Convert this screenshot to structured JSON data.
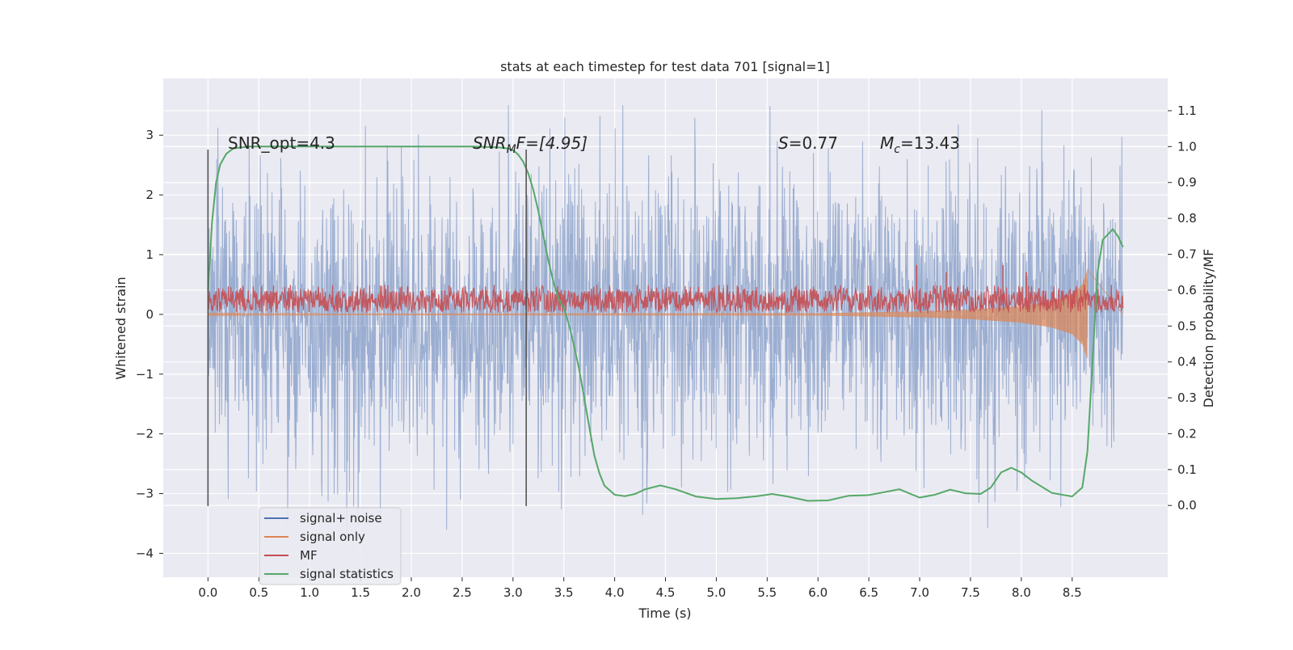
{
  "chart_data": {
    "type": "line",
    "title": "stats at each timestep for test data 701 [signal=1]",
    "xlabel": "Time (s)",
    "ylabel": "Whitened strain",
    "ylabel_right": "Detection probability/MF",
    "xlim": [
      -0.44,
      9.44
    ],
    "ylim": [
      -4.4,
      3.95
    ],
    "ylim_right": [
      -0.2,
      1.19
    ],
    "x_ticks": [
      "0.0",
      "0.5",
      "1.0",
      "1.5",
      "2.0",
      "2.5",
      "3.0",
      "3.5",
      "4.0",
      "4.5",
      "5.0",
      "5.5",
      "6.0",
      "6.5",
      "7.0",
      "7.5",
      "8.0",
      "8.5"
    ],
    "x_tick_values": [
      0.0,
      0.5,
      1.0,
      1.5,
      2.0,
      2.5,
      3.0,
      3.5,
      4.0,
      4.5,
      5.0,
      5.5,
      6.0,
      6.5,
      7.0,
      7.5,
      8.0,
      8.5
    ],
    "y_ticks": [
      "3",
      "2",
      "1",
      "0",
      "−1",
      "−2",
      "−3",
      "−4"
    ],
    "y_tick_values": [
      3,
      2,
      1,
      0,
      -1,
      -2,
      -3,
      -4
    ],
    "y_right_ticks": [
      "1.1",
      "1.0",
      "0.9",
      "0.8",
      "0.7",
      "0.6",
      "0.5",
      "0.4",
      "0.3",
      "0.2",
      "0.1",
      "0.0"
    ],
    "y_right_tick_values": [
      1.1,
      1.0,
      0.9,
      0.8,
      0.7,
      0.6,
      0.5,
      0.4,
      0.3,
      0.2,
      0.1,
      0.0
    ],
    "annotations": {
      "snr_opt": "SNR_opt=4.3",
      "snr_mf_name": "SNR",
      "snr_mf_sub": "M",
      "snr_mf_rest": "F=[4.95]",
      "s_name": "S",
      "s_value": "=0.77",
      "mc_name": "M",
      "mc_sub": "c",
      "mc_value": "=13.43"
    },
    "vertical_markers": [
      0.0,
      3.13
    ],
    "legend": {
      "position": "lower-left",
      "entries": [
        {
          "label": "signal+ noise",
          "color": "#4c72b0"
        },
        {
          "label": "signal only",
          "color": "#dd8452"
        },
        {
          "label": "MF",
          "color": "#c44e52"
        },
        {
          "label": "signal statistics",
          "color": "#55a868"
        }
      ]
    },
    "series": [
      {
        "name": "signal+ noise",
        "axis": "left",
        "description": "whitened noisy strain, dense time series",
        "x_range": [
          0.0,
          9.0
        ],
        "typical_amplitude": 1.3,
        "peak_min": -3.9,
        "peak_max": 3.5
      },
      {
        "name": "signal only",
        "axis": "left",
        "description": "chirp waveform, amplitude growing to merger",
        "x_range": [
          0.0,
          8.65
        ],
        "envelope": {
          "x": [
            0.0,
            6.0,
            7.0,
            7.5,
            8.0,
            8.3,
            8.5,
            8.6,
            8.65
          ],
          "amp": [
            0.01,
            0.02,
            0.05,
            0.08,
            0.14,
            0.22,
            0.33,
            0.5,
            0.75
          ]
        }
      },
      {
        "name": "MF",
        "axis": "right",
        "description": "matched-filter output",
        "x_range": [
          0.0,
          9.0
        ],
        "baseline": 0.56,
        "band": [
          0.537,
          0.6
        ],
        "spikes": [
          {
            "x": 6.97,
            "y": 0.67
          },
          {
            "x": 7.82,
            "y": 0.67
          },
          {
            "x": 7.26,
            "y": 0.65
          },
          {
            "x": 8.05,
            "y": 0.65
          }
        ]
      },
      {
        "name": "signal statistics",
        "axis": "right",
        "x": [
          0.0,
          0.04,
          0.08,
          0.12,
          0.18,
          0.25,
          0.4,
          1.0,
          2.0,
          2.6,
          2.85,
          2.95,
          3.0,
          3.05,
          3.1,
          3.15,
          3.2,
          3.25,
          3.3,
          3.35,
          3.4,
          3.45,
          3.5,
          3.55,
          3.6,
          3.65,
          3.7,
          3.75,
          3.8,
          3.85,
          3.9,
          4.0,
          4.1,
          4.2,
          4.3,
          4.45,
          4.6,
          4.8,
          5.0,
          5.2,
          5.4,
          5.55,
          5.7,
          5.9,
          6.1,
          6.3,
          6.5,
          6.65,
          6.8,
          7.0,
          7.15,
          7.3,
          7.45,
          7.6,
          7.7,
          7.8,
          7.9,
          8.0,
          8.1,
          8.3,
          8.5,
          8.6,
          8.65,
          8.7,
          8.75,
          8.8,
          8.9,
          8.95,
          9.0
        ],
        "y": [
          0.6,
          0.79,
          0.9,
          0.95,
          0.98,
          0.995,
          1.0,
          1.0,
          1.0,
          1.0,
          0.998,
          0.995,
          0.99,
          0.978,
          0.958,
          0.925,
          0.88,
          0.82,
          0.75,
          0.68,
          0.62,
          0.575,
          0.55,
          0.505,
          0.445,
          0.38,
          0.3,
          0.22,
          0.14,
          0.09,
          0.055,
          0.03,
          0.026,
          0.032,
          0.045,
          0.056,
          0.045,
          0.025,
          0.018,
          0.02,
          0.026,
          0.032,
          0.025,
          0.013,
          0.014,
          0.027,
          0.029,
          0.037,
          0.045,
          0.022,
          0.03,
          0.044,
          0.034,
          0.032,
          0.05,
          0.092,
          0.105,
          0.092,
          0.07,
          0.035,
          0.025,
          0.05,
          0.15,
          0.4,
          0.65,
          0.74,
          0.77,
          0.75,
          0.72
        ]
      }
    ]
  }
}
